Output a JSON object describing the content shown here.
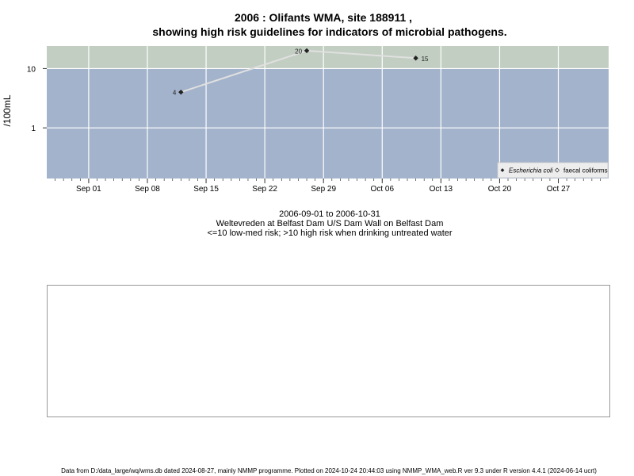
{
  "chart": {
    "title_line1": "2006 : Olifants WMA, site 188911 ,",
    "title_line2": "showing high risk guidelines for indicators of microbial pathogens.",
    "ylabel": "/100mL"
  },
  "chart_data": {
    "type": "line",
    "title": "2006 : Olifants WMA, site 188911 , showing high risk guidelines for indicators of microbial pathogens.",
    "xlabel": "",
    "ylabel": "/100mL",
    "y_scale": "log",
    "ylim": [
      0.14,
      24
    ],
    "xlim": [
      "2006-08-27",
      "2006-11-02"
    ],
    "x_ticks": [
      "Sep 01",
      "Sep 08",
      "Sep 15",
      "Sep 22",
      "Sep 29",
      "Oct 06",
      "Oct 13",
      "Oct 20",
      "Oct 27"
    ],
    "x_tick_dates": [
      "2006-09-01",
      "2006-09-08",
      "2006-09-15",
      "2006-09-22",
      "2006-09-29",
      "2006-10-06",
      "2006-10-13",
      "2006-10-20",
      "2006-10-27"
    ],
    "y_ticks": [
      1,
      10
    ],
    "y_tick_labels": [
      "1",
      "10"
    ],
    "threshold": 10,
    "grid": true,
    "legend_position": "bottom-right",
    "series": [
      {
        "name": "Escherichia coli",
        "x": [
          "2006-09-12",
          "2006-09-27",
          "2006-10-10"
        ],
        "values": [
          4,
          20,
          15
        ],
        "labels": [
          "4",
          "20",
          "15"
        ],
        "marker": "filled-diamond"
      },
      {
        "name": "faecal coliforms",
        "x": [],
        "values": [],
        "marker": "open-diamond"
      }
    ]
  },
  "captions": {
    "date_range": "2006-09-01 to 2006-10-31",
    "location": "Weltevreden at Belfast Dam U/S Dam Wall on Belfast Dam",
    "guideline": "<=10 low-med risk; >10 high risk when drinking untreated water"
  },
  "footer": "Data from D:/data_large/wq/wms.db dated 2024-08-27, mainly NMMP programme. Plotted on 2024-10-24 20:44:03 using NMMP_WMA_web.R ver 9.3 under R version 4.4.1 (2024-06-14 ucrt)",
  "colors": {
    "low_risk_band": "#a3b3cb",
    "high_risk_band": "#c2cec2",
    "grid": "#ffffff",
    "line": "#e0e0e0",
    "marker": "#222222"
  }
}
